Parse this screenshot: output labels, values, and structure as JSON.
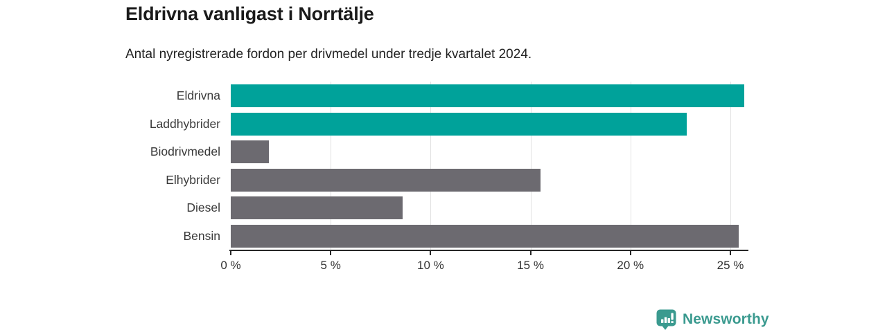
{
  "chart_data": {
    "type": "bar",
    "orientation": "horizontal",
    "title": "Eldrivna vanligast i Norrtälje",
    "subtitle": "Antal nyregistrerade fordon per drivmedel under tredje kvartalet 2024.",
    "categories": [
      "Eldrivna",
      "Laddhybrider",
      "Biodrivmedel",
      "Elhybrider",
      "Diesel",
      "Bensin"
    ],
    "values": [
      25.7,
      22.8,
      1.9,
      15.5,
      8.6,
      25.4
    ],
    "unit": "%",
    "bar_colors": [
      "#00A29A",
      "#00A29A",
      "#6C6A70",
      "#6C6A70",
      "#6C6A70",
      "#6C6A70"
    ],
    "xlabel": "",
    "ylabel": "",
    "xlim": [
      0,
      25.9
    ],
    "xticks": [
      0,
      5,
      10,
      15,
      20,
      25
    ],
    "xtick_labels": [
      "0 %",
      "5 %",
      "10 %",
      "15 %",
      "20 %",
      "25 %"
    ],
    "grid": true,
    "legend": false,
    "colors": {
      "accent_teal": "#00A29A",
      "neutral_gray": "#6C6A70",
      "gridline": "#E2E2E2",
      "axis": "#262626",
      "title_text": "#1A1A1A",
      "label_text": "#3A3A3A",
      "brand_teal": "#3A9A8F"
    }
  },
  "footer": {
    "logo_text": "Newsworthy"
  }
}
